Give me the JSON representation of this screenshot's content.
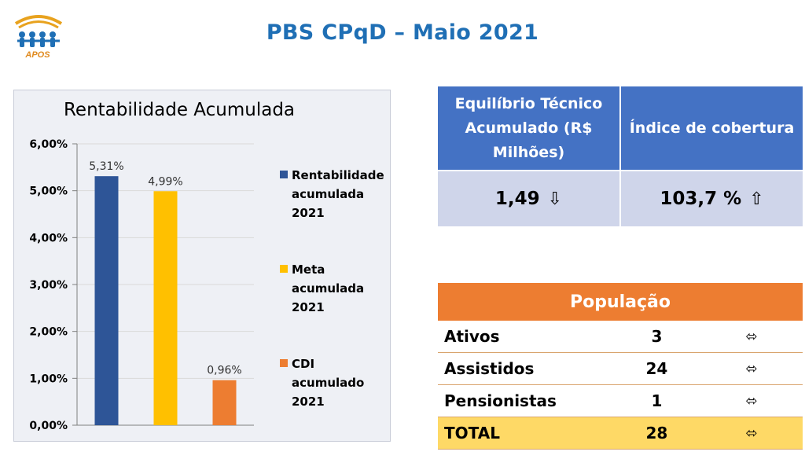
{
  "logo": {
    "icon": "people-arc-logo",
    "text": "APOS"
  },
  "page_title": "PBS CPqD – Maio 2021",
  "colors": {
    "title": "#1f6fb5",
    "table_header_blue": "#4472c4",
    "table_body_blue": "#cfd5ea",
    "table_header_orange": "#ed7d31",
    "total_row": "#fed966"
  },
  "chart_data": {
    "type": "bar",
    "title": "Rentabilidade Acumulada",
    "xlabel": "",
    "ylabel": "",
    "ylim": [
      0,
      6
    ],
    "y_ticks": [
      0,
      1,
      2,
      3,
      4,
      5,
      6
    ],
    "y_tick_labels": [
      "0,00%",
      "1,00%",
      "2,00%",
      "3,00%",
      "4,00%",
      "5,00%",
      "6,00%"
    ],
    "grid": true,
    "legend_position": "right",
    "series": [
      {
        "name": "Rentabilidade acumulada 2021",
        "value": 5.31,
        "label": "5,31%",
        "color": "#2e5597"
      },
      {
        "name": "Meta acumulada 2021",
        "value": 4.99,
        "label": "4,99%",
        "color": "#ffc000"
      },
      {
        "name": "CDI acumulado 2021",
        "value": 0.96,
        "label": "0,96%",
        "color": "#ed7d31"
      }
    ]
  },
  "equilibrio": {
    "headers": [
      "Equilíbrio Técnico Acumulado (R$ Milhões)",
      "Índice de cobertura"
    ],
    "values": [
      "1,49",
      "103,7 %"
    ],
    "arrows": [
      "⇩",
      "⇧"
    ]
  },
  "populacao": {
    "title": "População",
    "rows": [
      {
        "label": "Ativos",
        "value": "3",
        "arrow": "⬄"
      },
      {
        "label": "Assistidos",
        "value": "24",
        "arrow": "⬄"
      },
      {
        "label": "Pensionistas",
        "value": "1",
        "arrow": "⬄"
      }
    ],
    "total": {
      "label": "TOTAL",
      "value": "28",
      "arrow": "⬄"
    }
  }
}
